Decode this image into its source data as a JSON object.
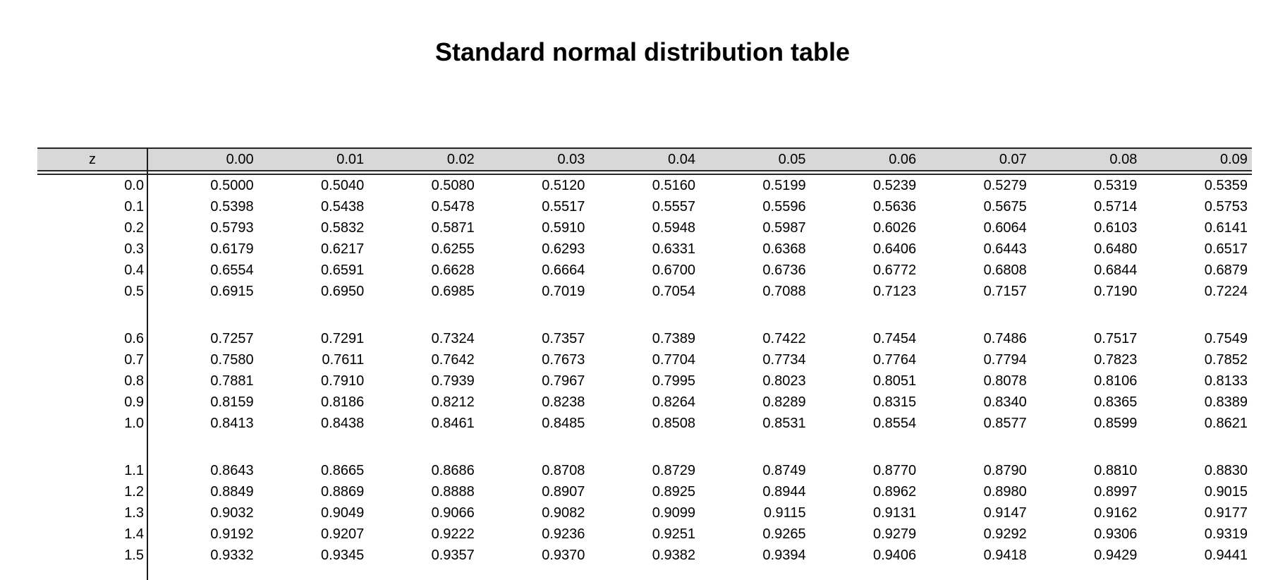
{
  "title": "Standard normal distribution table",
  "colors": {
    "header_bg": "#d8d8d8",
    "rule": "#262626",
    "text": "#000000"
  },
  "table": {
    "columns": [
      "z",
      "0.00",
      "0.01",
      "0.02",
      "0.03",
      "0.04",
      "0.05",
      "0.06",
      "0.07",
      "0.08",
      "0.09"
    ],
    "groups": [
      {
        "rows": [
          {
            "z": "0.0",
            "values": [
              "0.5000",
              "0.5040",
              "0.5080",
              "0.5120",
              "0.5160",
              "0.5199",
              "0.5239",
              "0.5279",
              "0.5319",
              "0.5359"
            ]
          },
          {
            "z": "0.1",
            "values": [
              "0.5398",
              "0.5438",
              "0.5478",
              "0.5517",
              "0.5557",
              "0.5596",
              "0.5636",
              "0.5675",
              "0.5714",
              "0.5753"
            ]
          },
          {
            "z": "0.2",
            "values": [
              "0.5793",
              "0.5832",
              "0.5871",
              "0.5910",
              "0.5948",
              "0.5987",
              "0.6026",
              "0.6064",
              "0.6103",
              "0.6141"
            ]
          },
          {
            "z": "0.3",
            "values": [
              "0.6179",
              "0.6217",
              "0.6255",
              "0.6293",
              "0.6331",
              "0.6368",
              "0.6406",
              "0.6443",
              "0.6480",
              "0.6517"
            ]
          },
          {
            "z": "0.4",
            "values": [
              "0.6554",
              "0.6591",
              "0.6628",
              "0.6664",
              "0.6700",
              "0.6736",
              "0.6772",
              "0.6808",
              "0.6844",
              "0.6879"
            ]
          },
          {
            "z": "0.5",
            "values": [
              "0.6915",
              "0.6950",
              "0.6985",
              "0.7019",
              "0.7054",
              "0.7088",
              "0.7123",
              "0.7157",
              "0.7190",
              "0.7224"
            ]
          }
        ]
      },
      {
        "rows": [
          {
            "z": "0.6",
            "values": [
              "0.7257",
              "0.7291",
              "0.7324",
              "0.7357",
              "0.7389",
              "0.7422",
              "0.7454",
              "0.7486",
              "0.7517",
              "0.7549"
            ]
          },
          {
            "z": "0.7",
            "values": [
              "0.7580",
              "0.7611",
              "0.7642",
              "0.7673",
              "0.7704",
              "0.7734",
              "0.7764",
              "0.7794",
              "0.7823",
              "0.7852"
            ]
          },
          {
            "z": "0.8",
            "values": [
              "0.7881",
              "0.7910",
              "0.7939",
              "0.7967",
              "0.7995",
              "0.8023",
              "0.8051",
              "0.8078",
              "0.8106",
              "0.8133"
            ]
          },
          {
            "z": "0.9",
            "values": [
              "0.8159",
              "0.8186",
              "0.8212",
              "0.8238",
              "0.8264",
              "0.8289",
              "0.8315",
              "0.8340",
              "0.8365",
              "0.8389"
            ]
          },
          {
            "z": "1.0",
            "values": [
              "0.8413",
              "0.8438",
              "0.8461",
              "0.8485",
              "0.8508",
              "0.8531",
              "0.8554",
              "0.8577",
              "0.8599",
              "0.8621"
            ]
          }
        ]
      },
      {
        "rows": [
          {
            "z": "1.1",
            "values": [
              "0.8643",
              "0.8665",
              "0.8686",
              "0.8708",
              "0.8729",
              "0.8749",
              "0.8770",
              "0.8790",
              "0.8810",
              "0.8830"
            ]
          },
          {
            "z": "1.2",
            "values": [
              "0.8849",
              "0.8869",
              "0.8888",
              "0.8907",
              "0.8925",
              "0.8944",
              "0.8962",
              "0.8980",
              "0.8997",
              "0.9015"
            ]
          },
          {
            "z": "1.3",
            "values": [
              "0.9032",
              "0.9049",
              "0.9066",
              "0.9082",
              "0.9099",
              "0.9115",
              "0.9131",
              "0.9147",
              "0.9162",
              "0.9177"
            ]
          },
          {
            "z": "1.4",
            "values": [
              "0.9192",
              "0.9207",
              "0.9222",
              "0.9236",
              "0.9251",
              "0.9265",
              "0.9279",
              "0.9292",
              "0.9306",
              "0.9319"
            ]
          },
          {
            "z": "1.5",
            "values": [
              "0.9332",
              "0.9345",
              "0.9357",
              "0.9370",
              "0.9382",
              "0.9394",
              "0.9406",
              "0.9418",
              "0.9429",
              "0.9441"
            ]
          }
        ]
      }
    ]
  }
}
